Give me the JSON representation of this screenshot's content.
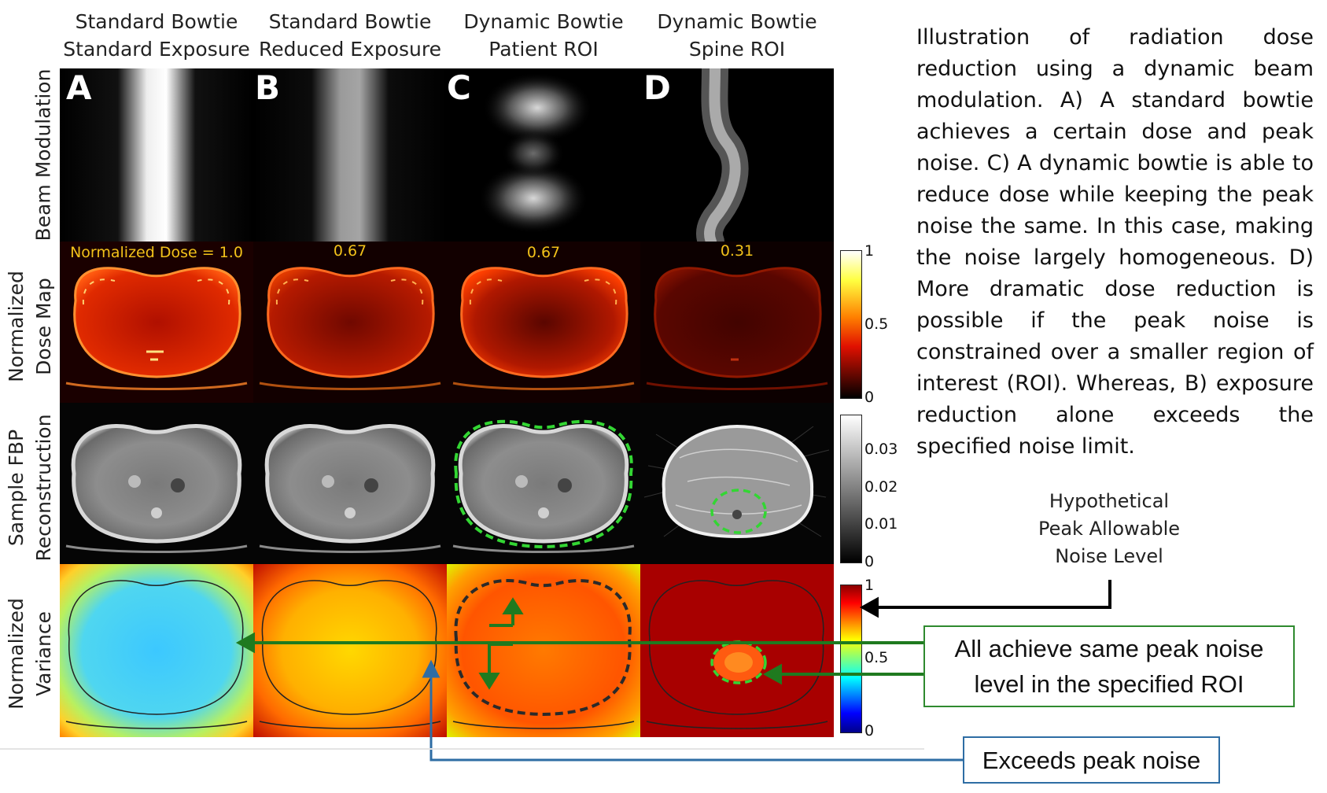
{
  "columns": [
    {
      "line1": "Standard Bowtie",
      "line2": "Standard Exposure",
      "letter": "A",
      "dose": "Normalized Dose = 1.0"
    },
    {
      "line1": "Standard Bowtie",
      "line2": "Reduced Exposure",
      "letter": "B",
      "dose": "0.67"
    },
    {
      "line1": "Dynamic Bowtie",
      "line2": "Patient ROI",
      "letter": "C",
      "dose": "0.67"
    },
    {
      "line1": "Dynamic Bowtie",
      "line2": "Spine ROI",
      "letter": "D",
      "dose": "0.31"
    }
  ],
  "rows": {
    "beam": {
      "line1": "Beam Modulation"
    },
    "dose": {
      "line1": "Normalized",
      "line2": "Dose Map"
    },
    "fbp": {
      "line1": "Sample FBP",
      "line2": "Reconstruction"
    },
    "variance": {
      "line1": "Normalized",
      "line2": "Variance"
    }
  },
  "colorbars": {
    "dose": {
      "ticks": [
        "1",
        "0.5",
        "0"
      ]
    },
    "fbp": {
      "ticks": [
        "0.03",
        "0.02",
        "0.01",
        "0"
      ]
    },
    "variance": {
      "ticks": [
        "1",
        "0.5",
        "0"
      ]
    }
  },
  "caption": "Illustration of radiation dose reduction using a dynamic beam modulation. A) A standard bowtie achieves a certain dose and peak noise. C) A dynamic bowtie is able to reduce dose while keeping the peak noise the same. In this case, making the noise largely homogeneous. D) More dramatic dose reduction is possible if the peak noise is constrained over a smaller region of interest (ROI). Whereas, B) exposure reduction alone exceeds the specified noise limit.",
  "hypothetical": {
    "line1": "Hypothetical",
    "line2": "Peak Allowable",
    "line3": "Noise Level"
  },
  "callouts": {
    "same_peak": {
      "line1": "All achieve same peak noise",
      "line2": "level in the specified ROI"
    },
    "exceeds": "Exceeds peak noise"
  },
  "colors": {
    "green_arrow": "#1f7a1f",
    "blue_arrow": "#2e6da4",
    "roi_dash": "#33d633",
    "dose_label": "#f2c21a"
  }
}
